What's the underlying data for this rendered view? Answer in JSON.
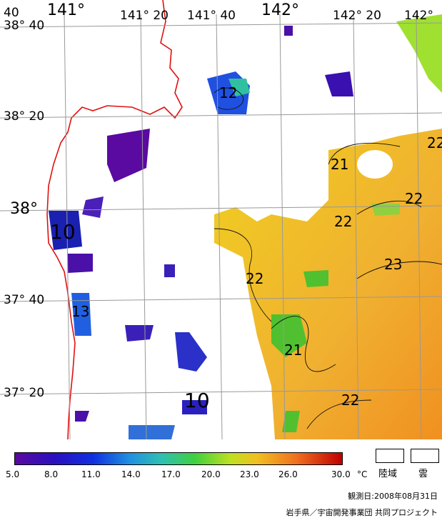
{
  "map": {
    "lon_labels": [
      "141°",
      "141° 20",
      "141° 40",
      "142°",
      "142° 20",
      "142°"
    ],
    "lat_labels": [
      "38° 40",
      "38° 20",
      "38°",
      "37° 40",
      "37° 20"
    ],
    "corner_label": "40",
    "contour_labels": [
      "12",
      "21",
      "22",
      "22",
      "22",
      "23",
      "22",
      "10",
      "13",
      "21",
      "22",
      "10",
      "22"
    ]
  },
  "colorbar": {
    "ticks": [
      "5.0",
      "8.0",
      "11.0",
      "14.0",
      "17.0",
      "20.0",
      "23.0",
      "26.0",
      "30.0"
    ],
    "unit": "°C",
    "colors": [
      "#5a0aa0",
      "#2020c8",
      "#1a60e0",
      "#20a0d8",
      "#28c8a0",
      "#40d040",
      "#a0e030",
      "#f0e000",
      "#f0a030",
      "#e05020",
      "#c80000"
    ]
  },
  "legend": {
    "land": "陸域",
    "cloud": "雲"
  },
  "footer": {
    "date": "観測日:2008年08月31日",
    "credit": "岩手県／宇宙開発事業団  共同プロジェクト"
  }
}
